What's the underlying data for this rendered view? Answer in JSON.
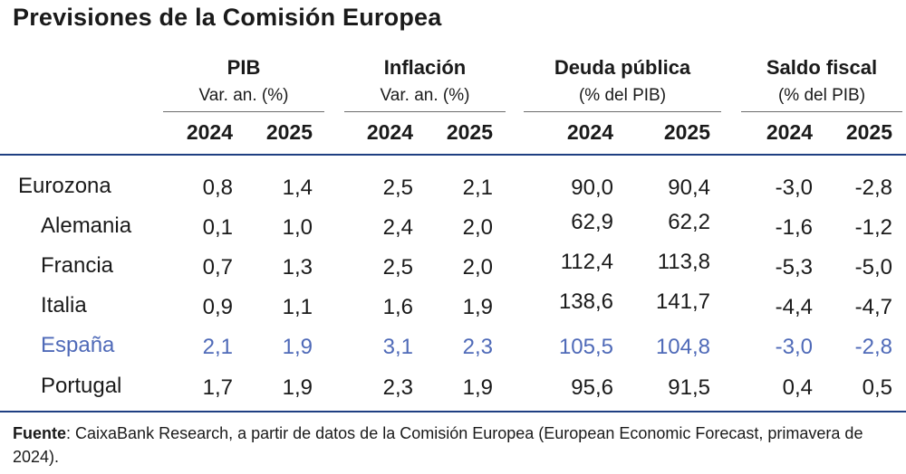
{
  "title": "Previsiones de la Comisión Europea",
  "groups": [
    {
      "heading": "PIB",
      "sub": "Var. an. (%)"
    },
    {
      "heading": "Inflación",
      "sub": "Var. an. (%)"
    },
    {
      "heading": "Deuda pública",
      "sub": "(% del PIB)"
    },
    {
      "heading": "Saldo fiscal",
      "sub": "(% del PIB)"
    }
  ],
  "years": [
    "2024",
    "2025",
    "2024",
    "2025",
    "2024",
    "2025",
    "2024",
    "2025"
  ],
  "rows": [
    {
      "label": "Eurozona",
      "values": [
        "0,8",
        "1,4",
        "2,5",
        "2,1",
        "90,0",
        "90,4",
        "-3,0",
        "-2,8"
      ]
    },
    {
      "label": "Alemania",
      "values": [
        "0,1",
        "1,0",
        "2,4",
        "2,0",
        "62,9",
        "62,2",
        "-1,6",
        "-1,2"
      ]
    },
    {
      "label": "Francia",
      "values": [
        "0,7",
        "1,3",
        "2,5",
        "2,0",
        "112,4",
        "113,8",
        "-5,3",
        "-5,0"
      ]
    },
    {
      "label": "Italia",
      "values": [
        "0,9",
        "1,1",
        "1,6",
        "1,9",
        "138,6",
        "141,7",
        "-4,4",
        "-4,7"
      ]
    },
    {
      "label": "España",
      "values": [
        "2,1",
        "1,9",
        "3,1",
        "2,3",
        "105,5",
        "104,8",
        "-3,0",
        "-2,8"
      ]
    },
    {
      "label": "Portugal",
      "values": [
        "1,7",
        "1,9",
        "2,3",
        "1,9",
        "95,6",
        "91,5",
        "0,4",
        "0,5"
      ]
    }
  ],
  "source": {
    "label": "Fuente",
    "text": ": CaixaBank Research, a partir de datos de la Comisión Europea (European Economic Forecast, primavera de 2024)."
  },
  "colors": {
    "highlight": "#4f6ab8",
    "rule": "#1f3f82"
  }
}
